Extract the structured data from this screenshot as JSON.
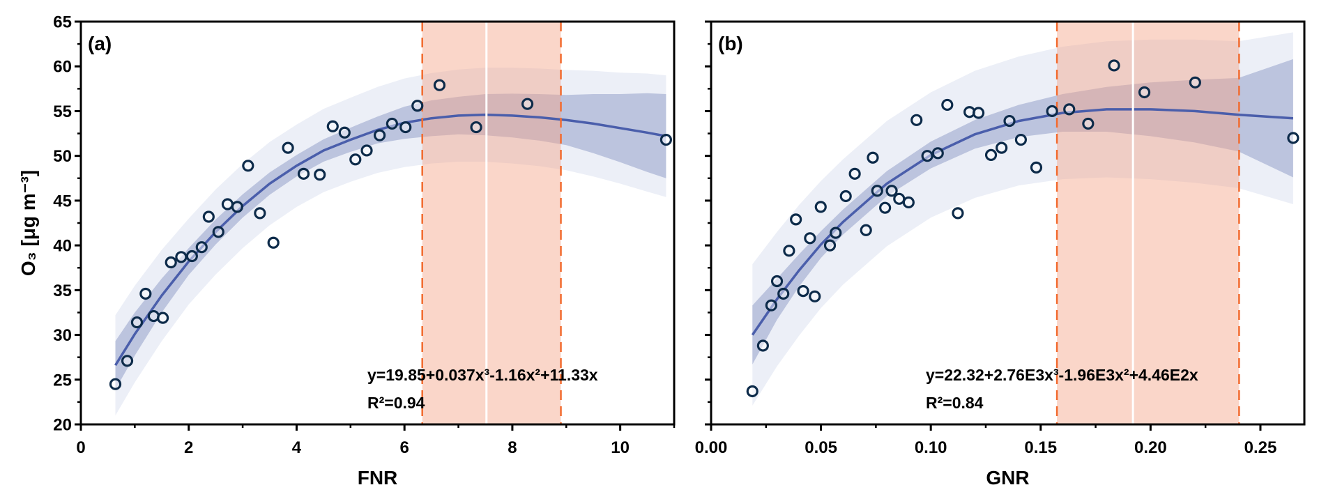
{
  "ylabel": "O₃ [μg m⁻³]",
  "colors": {
    "prediction_band": "#eceff7",
    "confidence_band": "#bcc4de",
    "fit_line": "#4a5eab",
    "point_stroke": "#0d2b4a",
    "highlight_fill": "#f4a487",
    "highlight_dash": "#f26b2f",
    "center_line": "#ffffff"
  },
  "chart_data": [
    {
      "type": "scatter",
      "panel_label": "(a)",
      "xlabel": "FNR",
      "ylabel": "O₃ [μg m⁻³]",
      "xlim": [
        0,
        11
      ],
      "ylim": [
        20,
        65
      ],
      "xticks": [
        0,
        2,
        4,
        6,
        8,
        10
      ],
      "xtick_labels": [
        "0",
        "2",
        "4",
        "6",
        "8",
        "10"
      ],
      "xminor_step": 1,
      "yticks": [
        20,
        25,
        30,
        35,
        40,
        45,
        50,
        55,
        60,
        65
      ],
      "ytick_labels": [
        "20",
        "25",
        "30",
        "35",
        "40",
        "45",
        "50",
        "55",
        "60",
        "65"
      ],
      "show_ytick_labels": true,
      "yminor_step": 2.5,
      "points": {
        "x": [
          0.64,
          0.86,
          1.04,
          1.2,
          1.35,
          1.52,
          1.67,
          1.86,
          2.06,
          2.24,
          2.37,
          2.55,
          2.72,
          2.9,
          3.1,
          3.32,
          3.57,
          3.84,
          4.13,
          4.43,
          4.67,
          4.89,
          5.09,
          5.3,
          5.54,
          5.77,
          6.02,
          6.24,
          6.65,
          7.33,
          8.28,
          10.85
        ],
        "y": [
          24.5,
          27.1,
          31.4,
          34.6,
          32.1,
          31.9,
          38.1,
          38.7,
          38.8,
          39.8,
          43.2,
          41.5,
          44.6,
          44.3,
          48.9,
          43.6,
          40.3,
          50.9,
          48.0,
          47.9,
          53.3,
          52.6,
          49.6,
          50.6,
          52.3,
          53.6,
          53.2,
          55.6,
          57.9,
          53.2,
          55.8,
          51.8
        ]
      },
      "fit": {
        "x": [
          0.64,
          1,
          1.5,
          2,
          2.5,
          3,
          3.5,
          4,
          4.5,
          5,
          5.5,
          6,
          6.5,
          7,
          7.5,
          8,
          8.5,
          9,
          9.5,
          10,
          10.5,
          10.85
        ],
        "y": [
          26.6,
          30.1,
          34.4,
          38.2,
          41.5,
          44.4,
          46.9,
          48.9,
          50.6,
          51.8,
          52.9,
          53.7,
          54.2,
          54.5,
          54.6,
          54.5,
          54.3,
          54.0,
          53.6,
          53.1,
          52.6,
          52.2
        ],
        "confidence_halfwidth": [
          2.7,
          2.4,
          1.9,
          1.5,
          1.4,
          1.3,
          1.25,
          1.2,
          1.25,
          1.35,
          1.5,
          1.8,
          2.0,
          2.1,
          2.3,
          2.45,
          2.6,
          2.8,
          3.3,
          3.8,
          4.4,
          4.7
        ],
        "prediction_halfwidth": [
          5.6,
          5.4,
          5.1,
          4.8,
          4.75,
          4.7,
          4.65,
          4.6,
          4.65,
          4.7,
          4.8,
          4.95,
          5.05,
          5.15,
          5.25,
          5.35,
          5.45,
          5.6,
          5.9,
          6.2,
          6.6,
          6.8
        ]
      },
      "equation": "y=19.85+0.037x³-1.16x²+11.33x",
      "r2": "R²=0.94",
      "highlight_range": [
        6.33,
        8.9
      ],
      "highlight_center": 7.52
    },
    {
      "type": "scatter",
      "panel_label": "(b)",
      "xlabel": "GNR",
      "ylabel": "",
      "xlim": [
        0,
        0.27
      ],
      "ylim": [
        20,
        65
      ],
      "xticks": [
        0,
        0.05,
        0.1,
        0.15,
        0.2,
        0.25
      ],
      "xtick_labels": [
        "0.00",
        "0.05",
        "0.10",
        "0.15",
        "0.20",
        "0.25"
      ],
      "xminor_step": 0.025,
      "yticks": [
        20,
        25,
        30,
        35,
        40,
        45,
        50,
        55,
        60,
        65
      ],
      "ytick_labels": [],
      "show_ytick_labels": false,
      "yminor_step": 2.5,
      "points": {
        "x": [
          0.0188,
          0.0236,
          0.0274,
          0.03,
          0.0329,
          0.0355,
          0.0386,
          0.0419,
          0.045,
          0.0472,
          0.0499,
          0.0541,
          0.0567,
          0.0613,
          0.0654,
          0.0705,
          0.0736,
          0.0756,
          0.0792,
          0.0822,
          0.0856,
          0.0899,
          0.0935,
          0.0984,
          0.1032,
          0.1075,
          0.1123,
          0.1176,
          0.1217,
          0.1274,
          0.1322,
          0.1358,
          0.141,
          0.148,
          0.1552,
          0.163,
          0.1716,
          0.1834,
          0.1972,
          0.2203,
          0.2649
        ],
        "y": [
          23.7,
          28.8,
          33.3,
          36.0,
          34.6,
          39.4,
          42.9,
          34.9,
          40.8,
          34.3,
          44.3,
          40.0,
          41.4,
          45.5,
          48.0,
          41.7,
          49.8,
          46.1,
          44.2,
          46.1,
          45.2,
          44.8,
          54.0,
          50.0,
          50.3,
          55.7,
          43.6,
          54.9,
          54.8,
          50.1,
          50.9,
          53.9,
          51.8,
          48.7,
          55.0,
          55.2,
          53.6,
          60.1,
          57.1,
          58.2,
          52.0
        ]
      },
      "fit": {
        "x": [
          0.0188,
          0.03,
          0.04,
          0.05,
          0.06,
          0.08,
          0.1,
          0.12,
          0.14,
          0.16,
          0.18,
          0.2,
          0.22,
          0.24,
          0.2649
        ],
        "y": [
          30.0,
          34.0,
          37.2,
          40.1,
          42.6,
          46.9,
          50.1,
          52.4,
          53.9,
          54.8,
          55.2,
          55.2,
          55.0,
          54.6,
          54.2
        ],
        "confidence_halfwidth": [
          3.3,
          2.3,
          1.8,
          1.5,
          1.4,
          1.4,
          1.5,
          1.6,
          1.8,
          2.1,
          2.5,
          3.0,
          3.5,
          4.1,
          6.6
        ],
        "prediction_halfwidth": [
          7.9,
          7.5,
          7.3,
          7.1,
          7.0,
          7.0,
          7.0,
          7.1,
          7.2,
          7.4,
          7.6,
          7.8,
          8.0,
          8.2,
          9.6
        ]
      },
      "equation": "y=22.32+2.76E3x³-1.96E3x²+4.46E2x",
      "r2": "R²=0.84",
      "highlight_range": [
        0.1574,
        0.2403
      ],
      "highlight_center": 0.192
    }
  ]
}
